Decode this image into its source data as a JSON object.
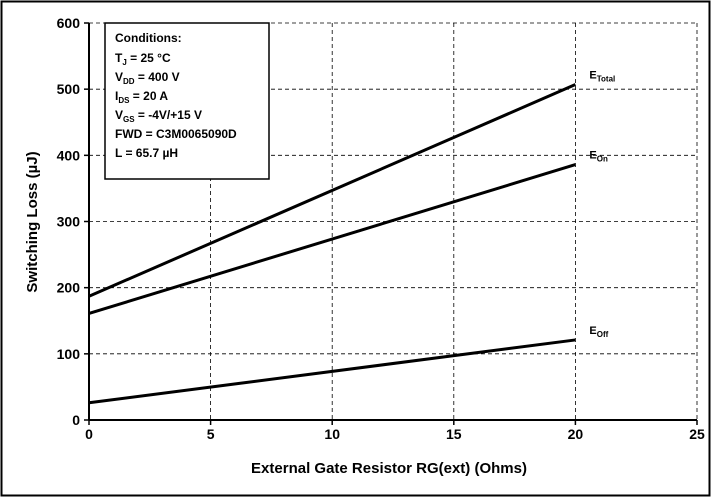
{
  "chart_data": {
    "type": "line",
    "xlabel": "External Gate Resistor RG(ext) (Ohms)",
    "ylabel": "Switching Loss (µJ)",
    "xlim": [
      0,
      25
    ],
    "ylim": [
      0,
      600
    ],
    "xticks": [
      "0",
      "5",
      "10",
      "15",
      "20",
      "25"
    ],
    "yticks": [
      "0",
      "100",
      "200",
      "300",
      "400",
      "500",
      "600"
    ],
    "grid": true,
    "series": [
      {
        "name": "E_Total",
        "label_main": "E",
        "label_sub": "Total",
        "x": [
          0,
          20
        ],
        "y": [
          187,
          507
        ]
      },
      {
        "name": "E_On",
        "label_main": "E",
        "label_sub": "On",
        "x": [
          0,
          20
        ],
        "y": [
          161,
          386
        ]
      },
      {
        "name": "E_Off",
        "label_main": "E",
        "label_sub": "Off",
        "x": [
          0,
          20
        ],
        "y": [
          26,
          121
        ]
      }
    ],
    "conditions": {
      "title": "Conditions:",
      "lines": [
        {
          "main": "T",
          "sub": "J",
          "rest": " = 25 °C"
        },
        {
          "main": "V",
          "sub": "DD",
          "rest": " = 400 V"
        },
        {
          "main": "I",
          "sub": "DS",
          "rest": " = 20 A"
        },
        {
          "main": "V",
          "sub": "GS",
          "rest": " = -4V/+15 V"
        },
        {
          "main": "FWD = C3M0065090D",
          "sub": "",
          "rest": ""
        },
        {
          "main": "L = 65.7 µH",
          "sub": "",
          "rest": ""
        }
      ]
    }
  }
}
